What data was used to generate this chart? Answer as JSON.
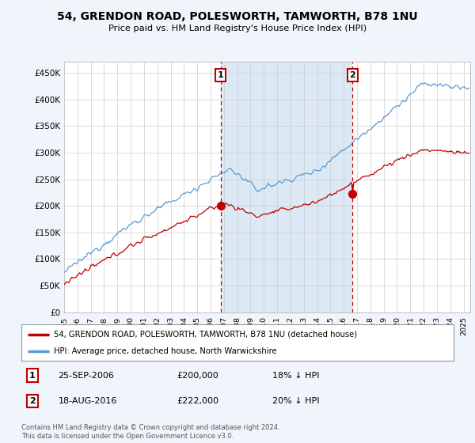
{
  "title": "54, GRENDON ROAD, POLESWORTH, TAMWORTH, B78 1NU",
  "subtitle": "Price paid vs. HM Land Registry's House Price Index (HPI)",
  "ylabel_ticks": [
    "£0",
    "£50K",
    "£100K",
    "£150K",
    "£200K",
    "£250K",
    "£300K",
    "£350K",
    "£400K",
    "£450K"
  ],
  "ytick_values": [
    0,
    50000,
    100000,
    150000,
    200000,
    250000,
    300000,
    350000,
    400000,
    450000
  ],
  "ylim": [
    0,
    470000
  ],
  "xlim_start": 1995.0,
  "xlim_end": 2025.5,
  "hpi_color": "#5b9bd5",
  "price_color": "#c00000",
  "sale1_x": 2006.75,
  "sale1_y": 200000,
  "sale2_x": 2016.63,
  "sale2_y": 222000,
  "shade_color": "#dce9f5",
  "legend_label1": "54, GRENDON ROAD, POLESWORTH, TAMWORTH, B78 1NU (detached house)",
  "legend_label2": "HPI: Average price, detached house, North Warwickshire",
  "note1_num": "1",
  "note1_date": "25-SEP-2006",
  "note1_price": "£200,000",
  "note1_hpi": "18% ↓ HPI",
  "note2_num": "2",
  "note2_date": "18-AUG-2016",
  "note2_price": "£222,000",
  "note2_hpi": "20% ↓ HPI",
  "footer": "Contains HM Land Registry data © Crown copyright and database right 2024.\nThis data is licensed under the Open Government Licence v3.0.",
  "bg_color": "#f0f4fb",
  "plot_bg_color": "#ffffff",
  "grid_color": "#cccccc"
}
